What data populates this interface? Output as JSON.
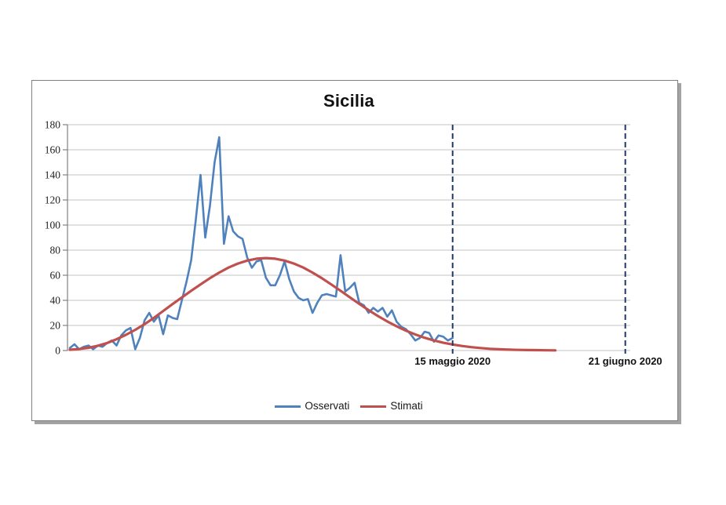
{
  "page": {
    "background": "#ffffff"
  },
  "chart_data": {
    "type": "line",
    "title": "Sicilia",
    "grid": "horizontal",
    "legend_position": "bottom",
    "ylim": [
      0,
      180
    ],
    "y_ticks": [
      0,
      20,
      40,
      60,
      80,
      100,
      120,
      140,
      160,
      180
    ],
    "x_axis": {
      "unit": "days",
      "tick_labels_visible": false
    },
    "series": [
      {
        "name": "Osservati",
        "color": "#4F81BD",
        "line_width": 2.6,
        "day_start": 0,
        "day_step": 1,
        "values": [
          2,
          5,
          1,
          3,
          4,
          1,
          4,
          3,
          6,
          8,
          4,
          12,
          16,
          18,
          1,
          10,
          24,
          30,
          23,
          28,
          13,
          28,
          26,
          25,
          40,
          55,
          72,
          105,
          140,
          90,
          115,
          150,
          170,
          85,
          107,
          95,
          91,
          89,
          74,
          66,
          71,
          72,
          58,
          52,
          52,
          60,
          71,
          57,
          47,
          42,
          40,
          41,
          30,
          38,
          44,
          45,
          44,
          43,
          76,
          47,
          50,
          54,
          38,
          36,
          30,
          34,
          31,
          34,
          27,
          32,
          23,
          19,
          17,
          13,
          8,
          10,
          15,
          14,
          7,
          12,
          11,
          8,
          10
        ]
      },
      {
        "name": "Stimati",
        "color": "#C0504D",
        "line_width": 3.2,
        "day_start": 0,
        "day_step": 2,
        "values": [
          0.6,
          1.2,
          2.2,
          3.8,
          6,
          9,
          12.5,
          16.5,
          21,
          26,
          31.5,
          37,
          42.3,
          47.6,
          52.7,
          57.6,
          62.1,
          66.1,
          69.3,
          71.7,
          73.2,
          73.7,
          73.2,
          71.7,
          69.3,
          66.1,
          62.1,
          57.6,
          52.7,
          47.6,
          42.4,
          37.2,
          32.2,
          27.5,
          23.2,
          19.3,
          15.8,
          12.8,
          10.2,
          8,
          6.2,
          4.8,
          3.6,
          2.7,
          2,
          1.4,
          1,
          0.7,
          0.5,
          0.4,
          0.3,
          0.2,
          0.1
        ]
      }
    ],
    "annotations": [
      {
        "label": "15 maggio 2020",
        "day": 82,
        "style": "dashed",
        "color": "#1F3864"
      },
      {
        "label": "21 giugno 2020",
        "day": 119,
        "style": "dashed",
        "color": "#1F3864"
      }
    ],
    "colors": {
      "gridline": "#C3C3C3",
      "axis": "#808080",
      "tick_label": "#1f1f1f",
      "annotation_label": "#111111"
    }
  }
}
